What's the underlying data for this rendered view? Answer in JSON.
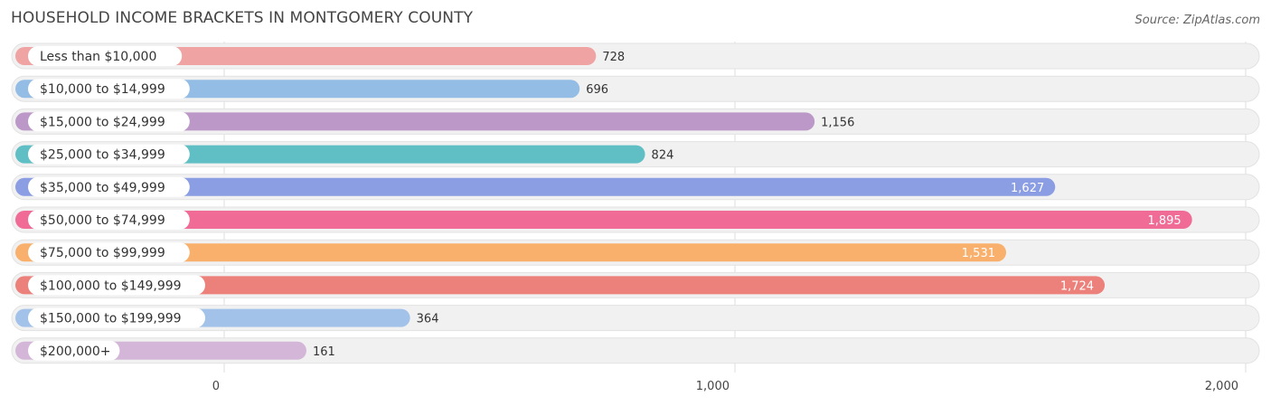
{
  "header": {
    "title": "HOUSEHOLD INCOME BRACKETS IN MONTGOMERY COUNTY",
    "source": "Source: ZipAtlas.com"
  },
  "chart_data": {
    "type": "bar",
    "orientation": "horizontal",
    "categories": [
      "Less than $10,000",
      "$10,000 to $14,999",
      "$15,000 to $24,999",
      "$25,000 to $34,999",
      "$35,000 to $49,999",
      "$50,000 to $74,999",
      "$75,000 to $99,999",
      "$100,000 to $149,999",
      "$150,000 to $199,999",
      "$200,000+"
    ],
    "values": [
      728,
      696,
      1156,
      824,
      1627,
      1895,
      1531,
      1724,
      364,
      161
    ],
    "value_labels": [
      "728",
      "696",
      "1,156",
      "824",
      "1,627",
      "1,895",
      "1,531",
      "1,724",
      "364",
      "161"
    ],
    "colors": [
      "#f0a3a3",
      "#94bde6",
      "#bb98c8",
      "#5fbfc5",
      "#8b9de3",
      "#f06c97",
      "#f8b06c",
      "#ec807a",
      "#a2c2ea",
      "#d3b6d8"
    ],
    "xlim": [
      0,
      2000
    ],
    "ticks": [
      0,
      1000,
      2000
    ],
    "tick_labels": [
      "0",
      "1,000",
      "2,000"
    ],
    "grid": true
  }
}
